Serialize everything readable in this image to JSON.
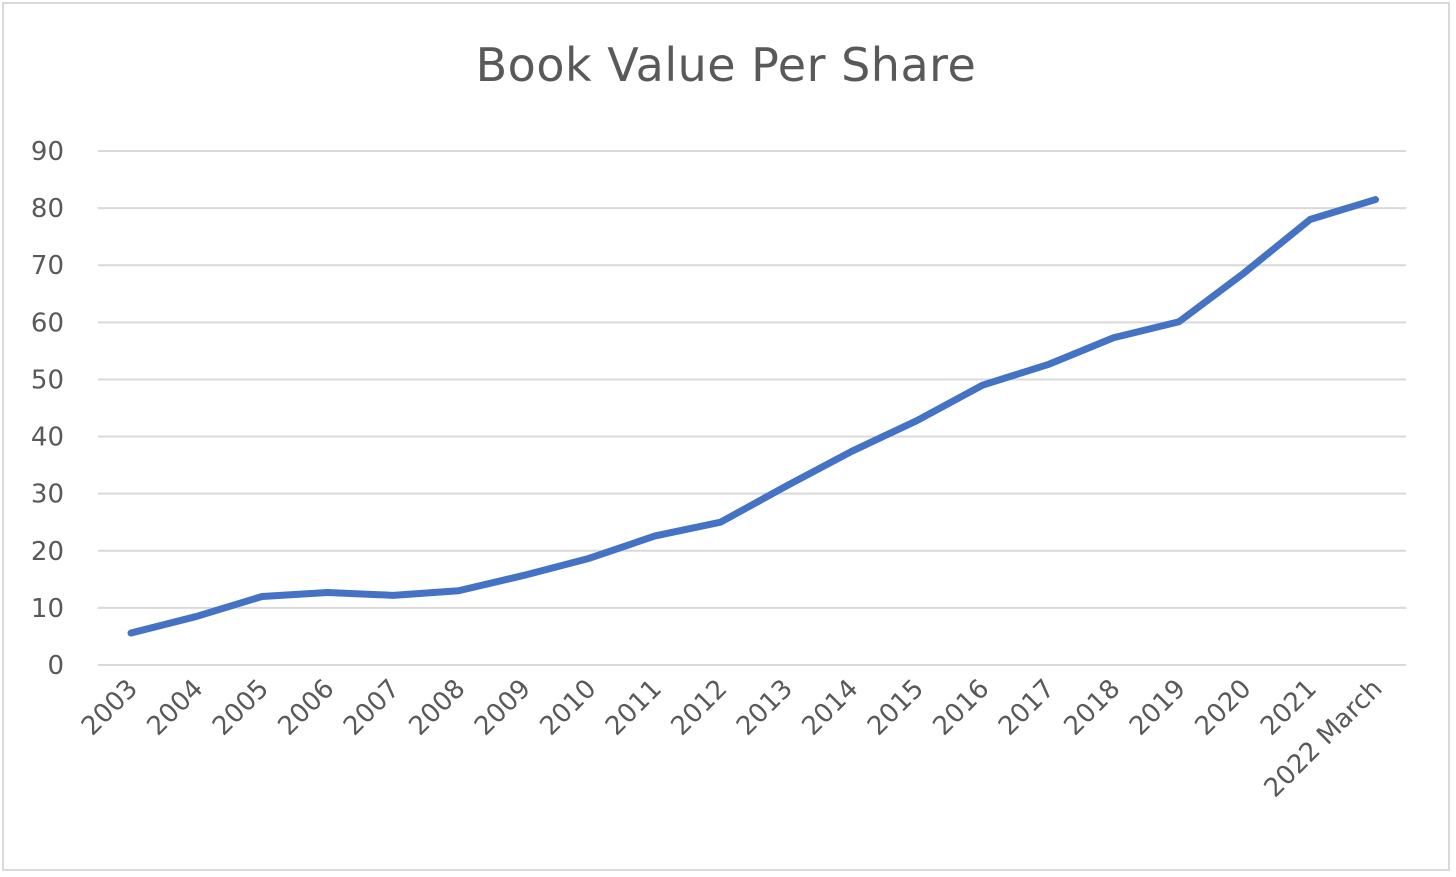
{
  "chart_data": {
    "type": "line",
    "title": "Book Value Per Share",
    "xlabel": "",
    "ylabel": "",
    "categories": [
      "2003",
      "2004",
      "2005",
      "2006",
      "2007",
      "2008",
      "2009",
      "2010",
      "2011",
      "2012",
      "2013",
      "2014",
      "2015",
      "2016",
      "2017",
      "2018",
      "2019",
      "2020",
      "2021",
      "2022 March"
    ],
    "series": [
      {
        "values": [
          5.6,
          8.5,
          12.0,
          12.7,
          12.2,
          13.0,
          15.7,
          18.7,
          22.6,
          25.0,
          31.3,
          37.4,
          42.8,
          49.0,
          52.6,
          57.3,
          60.1,
          68.7,
          78.0,
          81.5
        ]
      }
    ],
    "ylim": [
      0,
      90
    ],
    "yticks": [
      0,
      10,
      20,
      30,
      40,
      50,
      60,
      70,
      80,
      90
    ],
    "grid": true,
    "legend": "none",
    "colors": {
      "line": "#4472c4",
      "grid": "#d9d9d9",
      "text": "#595959"
    }
  }
}
